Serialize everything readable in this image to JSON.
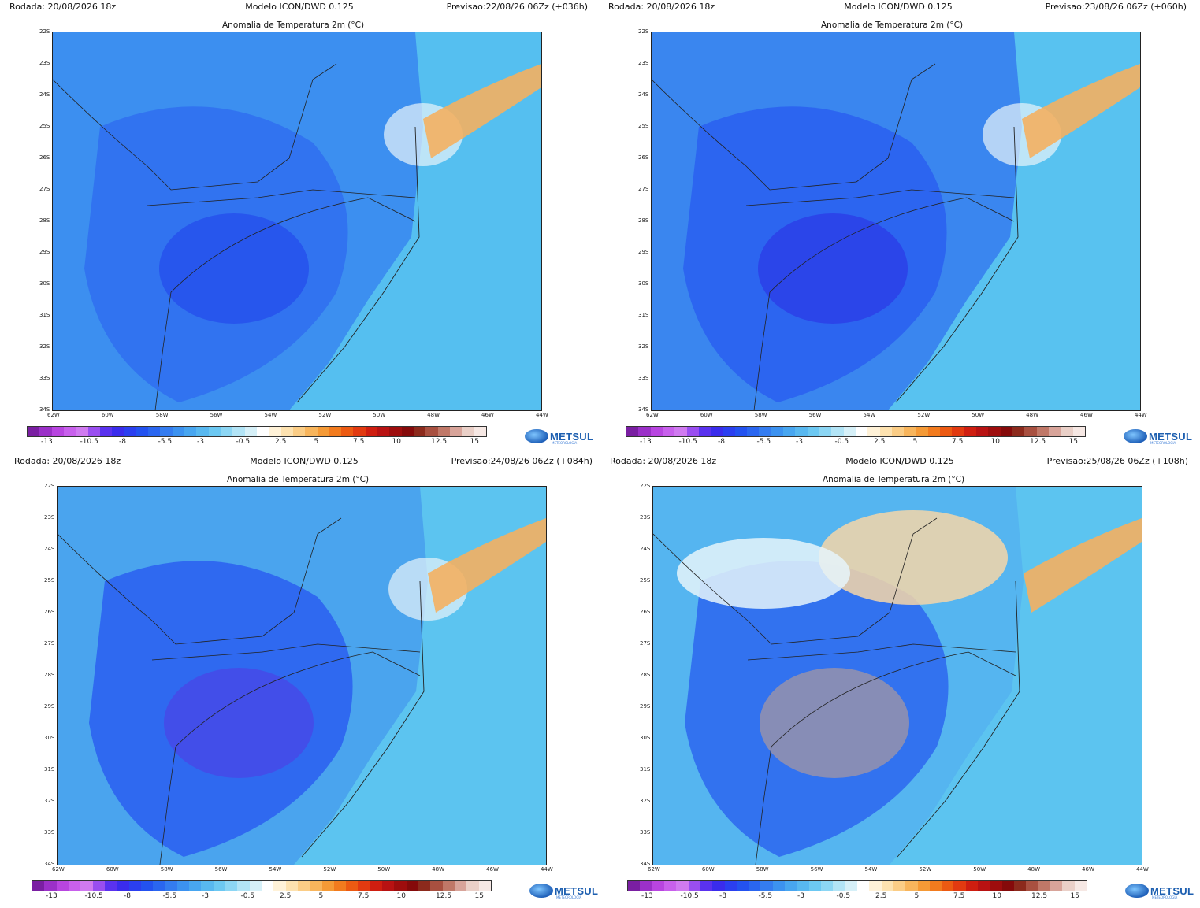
{
  "panels": [
    {
      "rodada": "Rodada: 20/08/2026 18z",
      "modelo": "Modelo ICON/DWD 0.125",
      "previsao": "Previsao:22/08/26 06Zz (+036h)",
      "title": "Anomalia de Temperatura 2m (°C)",
      "dominant_anomaly": "cold",
      "colors": {
        "base": "#3c8ff0",
        "land": "#2f6ff0",
        "ocean": "#55bff0",
        "accent": "#1d33e8"
      }
    },
    {
      "rodada": "Rodada: 20/08/2026 18z",
      "modelo": "Modelo ICON/DWD 0.125",
      "previsao": "Previsao:23/08/26 06Zz (+060h)",
      "title": "Anomalia de Temperatura 2m (°C)",
      "dominant_anomaly": "cold",
      "colors": {
        "base": "#3a86ef",
        "land": "#2a5ff0",
        "ocean": "#58c2f0",
        "accent": "#2a20e0"
      }
    },
    {
      "rodada": "Rodada: 20/08/2026 18z",
      "modelo": "Modelo ICON/DWD 0.125",
      "previsao": "Previsao:24/08/26 06Zz (+084h)",
      "title": "Anomalia de Temperatura 2m (°C)",
      "dominant_anomaly": "cold-south",
      "colors": {
        "base": "#4aa4ee",
        "land": "#2a5ff0",
        "ocean": "#5cc4f0",
        "accent": "#5b2ee0"
      }
    },
    {
      "rodada": "Rodada: 20/08/2026 18z",
      "modelo": "Modelo ICON/DWD 0.125",
      "previsao": "Previsao:25/08/26 06Zz (+108h)",
      "title": "Anomalia de Temperatura 2m (°C)",
      "dominant_anomaly": "cold-south-warm-north",
      "colors": {
        "base": "#55b5f0",
        "land": "#2d66ef",
        "ocean": "#5cc4f0",
        "accent": "#f0b070"
      }
    }
  ],
  "lat_labels": [
    "22S",
    "23S",
    "24S",
    "25S",
    "26S",
    "27S",
    "28S",
    "29S",
    "30S",
    "31S",
    "32S",
    "33S",
    "34S"
  ],
  "lon_labels": [
    "62W",
    "60W",
    "58W",
    "56W",
    "54W",
    "52W",
    "50W",
    "48W",
    "46W",
    "44W"
  ],
  "colorbar": {
    "tick_labels": [
      "-13",
      "-10.5",
      "-8",
      "-5.5",
      "-3",
      "-0.5",
      "2.5",
      "5",
      "7.5",
      "10",
      "12.5",
      "15"
    ],
    "colors": [
      "#7a1fa2",
      "#9b30c8",
      "#b845e0",
      "#c860ec",
      "#d07af0",
      "#9a4ef0",
      "#5a32ef",
      "#3a2cec",
      "#2b3ff0",
      "#2352f0",
      "#2a66f0",
      "#347cf0",
      "#3c92f0",
      "#48a6f0",
      "#58b8f0",
      "#6cc8f2",
      "#8cd6f4",
      "#b2e4f6",
      "#d6f0f8",
      "#ffffff",
      "#fff2d8",
      "#fde2b0",
      "#fbcd86",
      "#f8b55c",
      "#f59a36",
      "#f27b1e",
      "#ec5a12",
      "#e23a10",
      "#cf1e10",
      "#b81212",
      "#9e0d0d",
      "#850a0a",
      "#8c2a1c",
      "#a85040",
      "#c07868",
      "#d8a49a",
      "#ead0c8",
      "#f6e8e4"
    ]
  },
  "logo": {
    "name": "METSUL",
    "sub": "METEOROLOGIA"
  }
}
